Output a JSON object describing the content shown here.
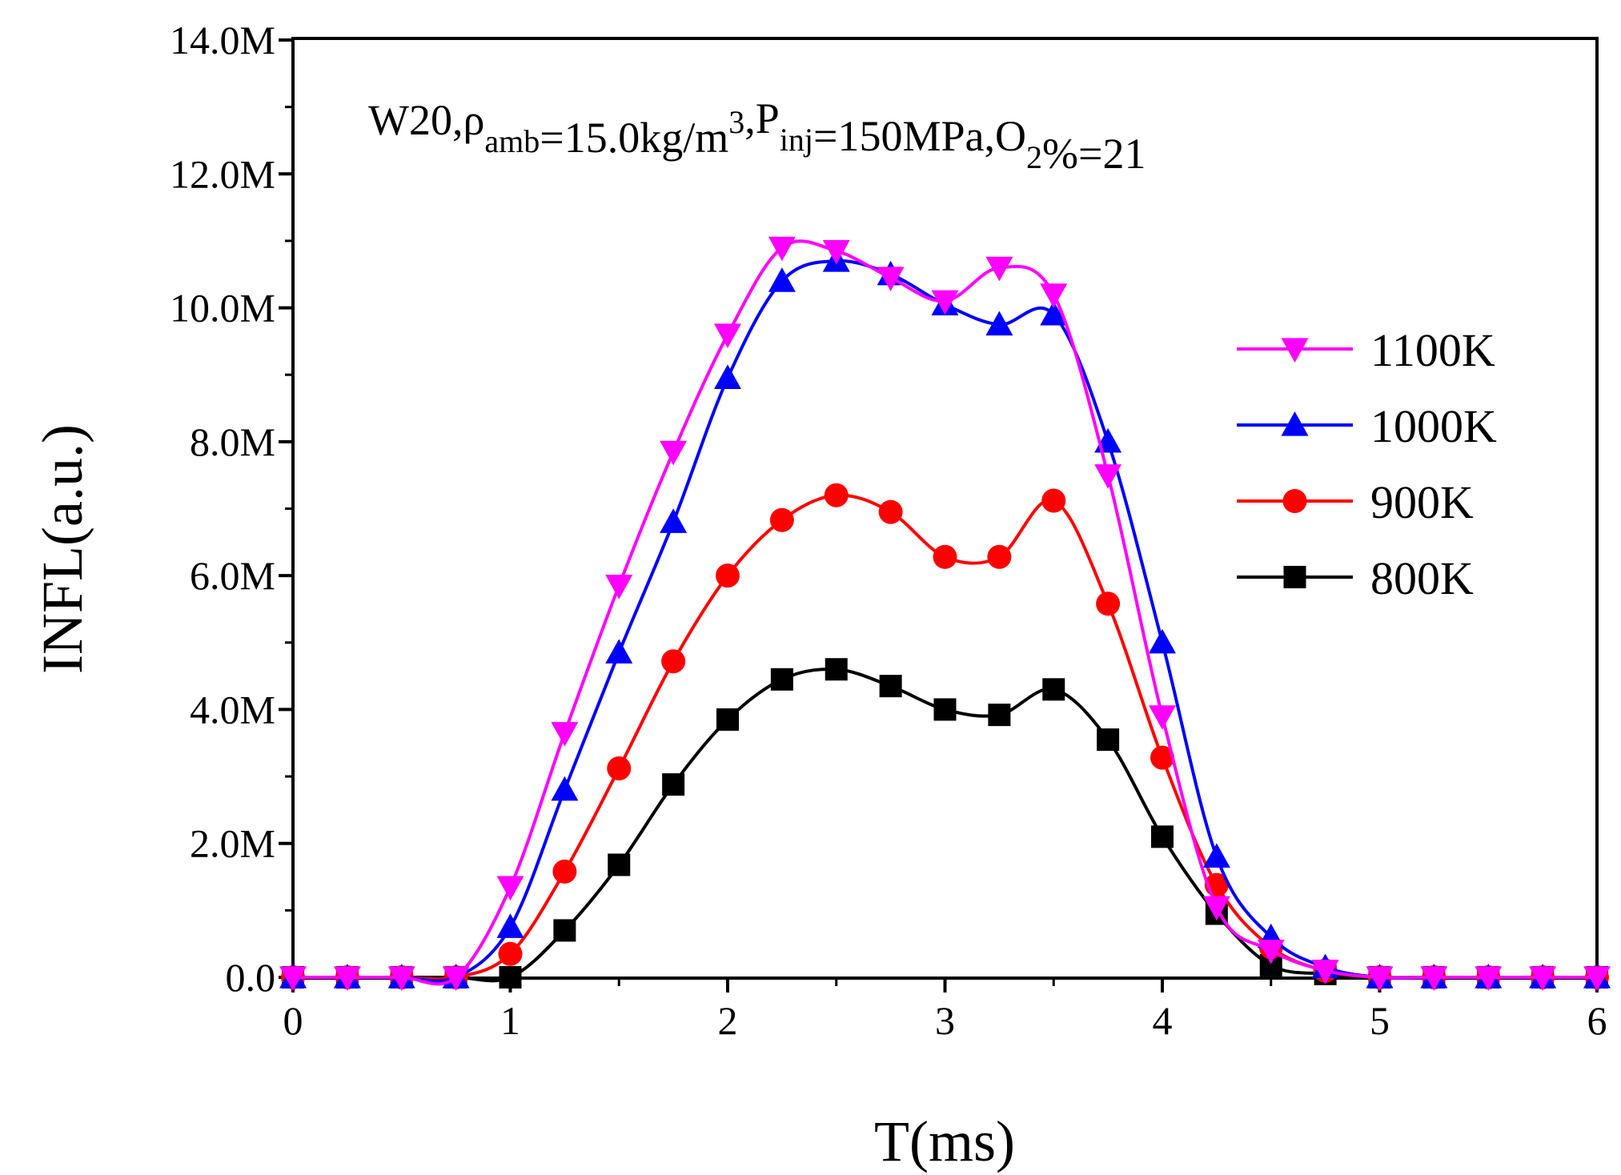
{
  "chart_data": {
    "type": "line",
    "xlabel": "T(ms)",
    "ylabel": "INFL(a.u.)",
    "xlim": [
      0,
      6
    ],
    "ylim": [
      0,
      14
    ],
    "x_ticks": [
      0,
      1,
      2,
      3,
      4,
      5,
      6
    ],
    "x_tick_labels": [
      "0",
      "1",
      "2",
      "3",
      "4",
      "5",
      "6"
    ],
    "y_ticks": [
      0,
      2,
      4,
      6,
      8,
      10,
      12,
      14
    ],
    "y_tick_labels": [
      "0.0",
      "2.0M",
      "4.0M",
      "6.0M",
      "8.0M",
      "10.0M",
      "12.0M",
      "14.0M"
    ],
    "annotation": {
      "parts": [
        {
          "text": "W20,ρ",
          "style": "normal"
        },
        {
          "text": "amb",
          "style": "sub"
        },
        {
          "text": "=15.0kg/m",
          "style": "normal"
        },
        {
          "text": "3",
          "style": "sup"
        },
        {
          "text": ",P",
          "style": "normal"
        },
        {
          "text": "inj",
          "style": "sub"
        },
        {
          "text": "=150MPa,O",
          "style": "normal"
        },
        {
          "text": "2",
          "style": "sub"
        },
        {
          "text": "%=21",
          "style": "normal"
        }
      ]
    },
    "legend_position": "right",
    "x": [
      0,
      0.25,
      0.5,
      0.75,
      1,
      1.25,
      1.5,
      1.75,
      2,
      2.25,
      2.5,
      2.75,
      3,
      3.25,
      3.5,
      3.75,
      4,
      4.25,
      4.5,
      4.75,
      5,
      5.25,
      5.5,
      5.75,
      6
    ],
    "series": [
      {
        "name": "1100K",
        "color": "#ff00ff",
        "marker": "triangle-down",
        "values": [
          0,
          0,
          0,
          0,
          1.35,
          3.65,
          5.85,
          7.85,
          9.6,
          10.9,
          10.85,
          10.45,
          10.1,
          10.6,
          10.2,
          7.5,
          3.9,
          1.05,
          0.4,
          0.1,
          0,
          0,
          0,
          0,
          0
        ]
      },
      {
        "name": "1000K",
        "color": "#0000ff",
        "marker": "triangle-up",
        "values": [
          0,
          0,
          0,
          0,
          0.75,
          2.8,
          4.85,
          6.8,
          8.95,
          10.4,
          10.7,
          10.5,
          10.05,
          9.75,
          9.9,
          8.0,
          5.0,
          1.8,
          0.6,
          0.15,
          0,
          0,
          0,
          0,
          0
        ]
      },
      {
        "name": "900K",
        "color": "#ff0000",
        "marker": "circle",
        "values": [
          0,
          0,
          0,
          0,
          0.35,
          1.58,
          3.12,
          4.72,
          6.0,
          6.83,
          7.2,
          6.95,
          6.28,
          6.28,
          7.12,
          5.58,
          3.28,
          1.38,
          0.45,
          0.1,
          0,
          0,
          0,
          0,
          0
        ]
      },
      {
        "name": "800K",
        "color": "#000000",
        "marker": "square",
        "values": [
          0,
          0,
          0,
          0,
          0,
          0.7,
          1.68,
          2.88,
          3.85,
          4.45,
          4.6,
          4.35,
          4.0,
          3.92,
          4.3,
          3.55,
          2.1,
          0.95,
          0.18,
          0.05,
          0,
          0,
          0,
          0,
          0
        ]
      }
    ]
  }
}
